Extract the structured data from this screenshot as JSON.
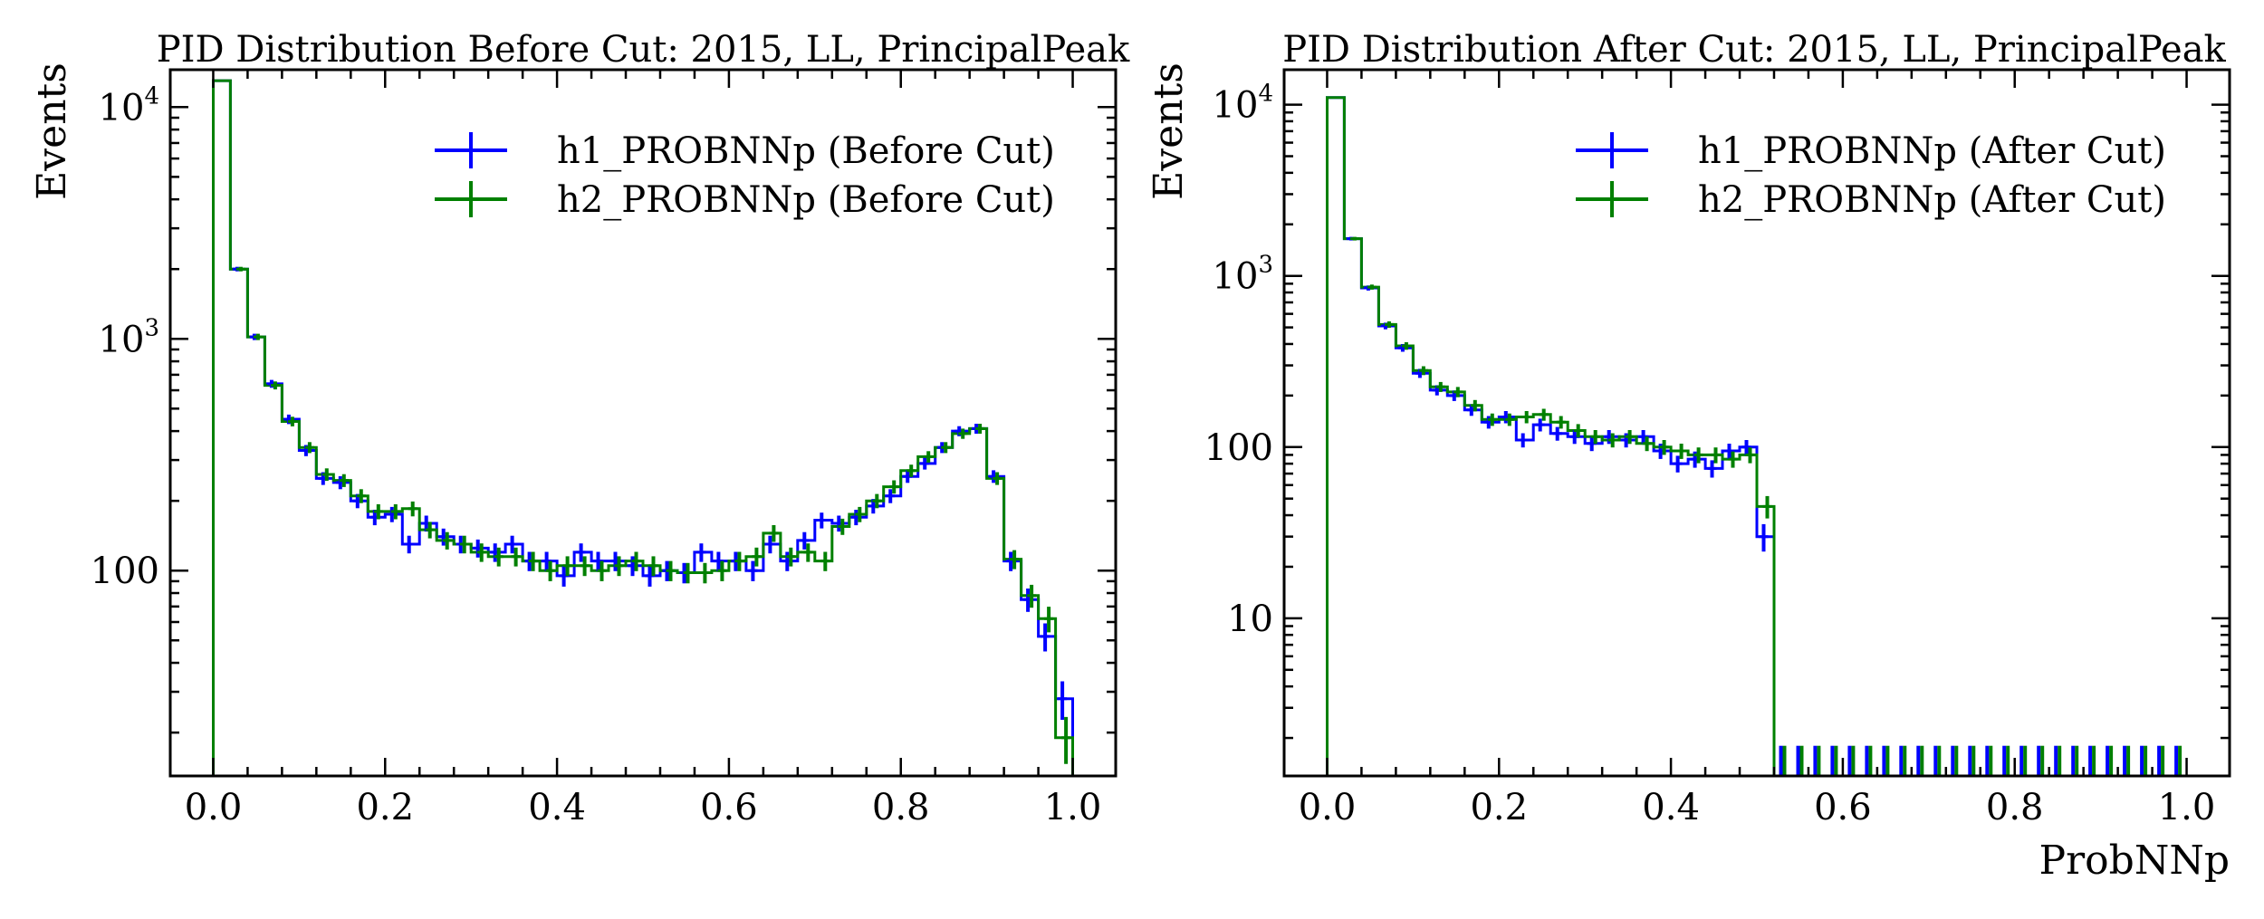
{
  "chart_data": [
    {
      "type": "histogram",
      "title": "PID Distribution Before Cut: 2015, LL, PrincipalPeak",
      "xlabel": "",
      "ylabel": "Events",
      "yscale": "log",
      "xlim": [
        -0.05,
        1.05
      ],
      "ylim": [
        13,
        14500
      ],
      "x_ticks": [
        "0.0",
        "0.2",
        "0.4",
        "0.6",
        "0.8",
        "1.0"
      ],
      "y_ticks": [
        {
          "value": 100,
          "label": "100"
        },
        {
          "value": 1000,
          "label": "10",
          "exp": "3"
        },
        {
          "value": 10000,
          "label": "10",
          "exp": "4"
        }
      ],
      "bin_edges": [
        0,
        0.02,
        0.04,
        0.06,
        0.08,
        0.1,
        0.12,
        0.14,
        0.16,
        0.18,
        0.2,
        0.22,
        0.24,
        0.26,
        0.28,
        0.3,
        0.32,
        0.34,
        0.36,
        0.38,
        0.4,
        0.42,
        0.44,
        0.46,
        0.48,
        0.5,
        0.52,
        0.54,
        0.56,
        0.58,
        0.6,
        0.62,
        0.64,
        0.66,
        0.68,
        0.7,
        0.72,
        0.74,
        0.76,
        0.78,
        0.8,
        0.82,
        0.84,
        0.86,
        0.88,
        0.9,
        0.92,
        0.94,
        0.96,
        0.98,
        1.0
      ],
      "legend_position": "top-right",
      "series": [
        {
          "name": "h1_PROBNNp (Before Cut)",
          "color": "#0000ff",
          "values": [
            13000,
            2000,
            1020,
            640,
            450,
            330,
            250,
            240,
            200,
            170,
            175,
            130,
            160,
            140,
            130,
            125,
            120,
            130,
            110,
            110,
            95,
            120,
            110,
            110,
            105,
            95,
            100,
            98,
            120,
            110,
            110,
            100,
            130,
            110,
            135,
            165,
            160,
            170,
            190,
            210,
            255,
            290,
            340,
            400,
            410,
            255,
            110,
            75,
            52,
            28
          ]
        },
        {
          "name": "h2_PROBNNp (Before Cut)",
          "color": "#008000",
          "values": [
            13000,
            2000,
            1020,
            630,
            440,
            340,
            260,
            245,
            210,
            180,
            180,
            185,
            150,
            135,
            130,
            120,
            115,
            115,
            110,
            100,
            105,
            105,
            100,
            105,
            110,
            105,
            100,
            98,
            98,
            100,
            110,
            115,
            145,
            115,
            120,
            110,
            155,
            175,
            200,
            230,
            270,
            310,
            340,
            390,
            410,
            250,
            112,
            78,
            62,
            19
          ]
        }
      ]
    },
    {
      "type": "histogram",
      "title": "PID Distribution After Cut: 2015, LL, PrincipalPeak",
      "xlabel": "ProbNNp",
      "ylabel": "Events",
      "yscale": "log",
      "xlim": [
        -0.05,
        1.05
      ],
      "ylim": [
        1.2,
        16000
      ],
      "x_ticks": [
        "0.0",
        "0.2",
        "0.4",
        "0.6",
        "0.8",
        "1.0"
      ],
      "y_ticks": [
        {
          "value": 10,
          "label": "10"
        },
        {
          "value": 100,
          "label": "100"
        },
        {
          "value": 1000,
          "label": "10",
          "exp": "3"
        },
        {
          "value": 10000,
          "label": "10",
          "exp": "4"
        }
      ],
      "bin_edges": [
        0,
        0.02,
        0.04,
        0.06,
        0.08,
        0.1,
        0.12,
        0.14,
        0.16,
        0.18,
        0.2,
        0.22,
        0.24,
        0.26,
        0.28,
        0.3,
        0.32,
        0.34,
        0.36,
        0.38,
        0.4,
        0.42,
        0.44,
        0.46,
        0.48,
        0.5,
        0.52,
        0.54,
        0.56,
        0.58,
        0.6,
        0.62,
        0.64,
        0.66,
        0.68,
        0.7,
        0.72,
        0.74,
        0.76,
        0.78,
        0.8,
        0.82,
        0.84,
        0.86,
        0.88,
        0.9,
        0.92,
        0.94,
        0.96,
        0.98,
        1.0
      ],
      "legend_position": "top-right",
      "series": [
        {
          "name": "h1_PROBNNp (After Cut)",
          "color": "#0000ff",
          "values": [
            11000,
            1650,
            850,
            510,
            380,
            270,
            215,
            200,
            165,
            140,
            150,
            110,
            135,
            120,
            115,
            105,
            115,
            110,
            115,
            95,
            80,
            85,
            75,
            95,
            100,
            30,
            0,
            0,
            0,
            0,
            0,
            0,
            0,
            0,
            0,
            0,
            0,
            0,
            0,
            0,
            0,
            0,
            0,
            0,
            0,
            0,
            0,
            0,
            0,
            0
          ]
        },
        {
          "name": "h2_PROBNNp (After Cut)",
          "color": "#008000",
          "values": [
            11000,
            1650,
            860,
            520,
            390,
            280,
            225,
            210,
            175,
            145,
            145,
            150,
            155,
            140,
            125,
            115,
            110,
            115,
            105,
            100,
            95,
            90,
            90,
            85,
            90,
            45,
            0,
            0,
            0,
            0,
            0,
            0,
            0,
            0,
            0,
            0,
            0,
            0,
            0,
            0,
            0,
            0,
            0,
            0,
            0,
            0,
            0,
            0,
            0,
            0
          ]
        }
      ]
    }
  ]
}
